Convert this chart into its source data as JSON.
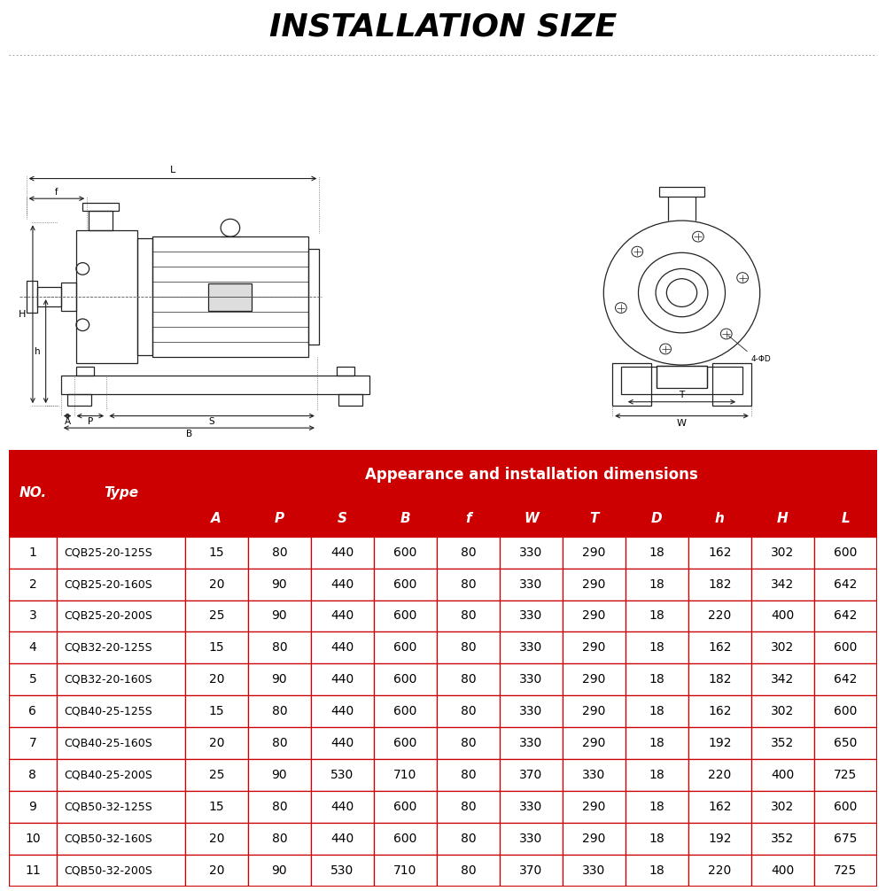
{
  "title": "INSTALLATION SIZE",
  "title_fontsize": 26,
  "title_fontstyle": "italic",
  "title_fontweight": "bold",
  "bg_color": "#ffffff",
  "table_header_bg": "#cc0000",
  "table_header_color": "#ffffff",
  "table_row_bg": "#ffffff",
  "table_border_color": "#cc0000",
  "col_headers": [
    "NO.",
    "Type",
    "A",
    "P",
    "S",
    "B",
    "f",
    "W",
    "T",
    "D",
    "h",
    "H",
    "L"
  ],
  "dim_header": "Appearance and installation dimensions",
  "rows": [
    [
      1,
      "CQB25-20-125S",
      15,
      80,
      440,
      600,
      80,
      330,
      290,
      18,
      162,
      302,
      600
    ],
    [
      2,
      "CQB25-20-160S",
      20,
      90,
      440,
      600,
      80,
      330,
      290,
      18,
      182,
      342,
      642
    ],
    [
      3,
      "CQB25-20-200S",
      25,
      90,
      440,
      600,
      80,
      330,
      290,
      18,
      220,
      400,
      642
    ],
    [
      4,
      "CQB32-20-125S",
      15,
      80,
      440,
      600,
      80,
      330,
      290,
      18,
      162,
      302,
      600
    ],
    [
      5,
      "CQB32-20-160S",
      20,
      90,
      440,
      600,
      80,
      330,
      290,
      18,
      182,
      342,
      642
    ],
    [
      6,
      "CQB40-25-125S",
      15,
      80,
      440,
      600,
      80,
      330,
      290,
      18,
      162,
      302,
      600
    ],
    [
      7,
      "CQB40-25-160S",
      20,
      80,
      440,
      600,
      80,
      330,
      290,
      18,
      192,
      352,
      650
    ],
    [
      8,
      "CQB40-25-200S",
      25,
      90,
      530,
      710,
      80,
      370,
      330,
      18,
      220,
      400,
      725
    ],
    [
      9,
      "CQB50-32-125S",
      15,
      80,
      440,
      600,
      80,
      330,
      290,
      18,
      162,
      302,
      600
    ],
    [
      10,
      "CQB50-32-160S",
      20,
      80,
      440,
      600,
      80,
      330,
      290,
      18,
      192,
      352,
      675
    ],
    [
      11,
      "CQB50-32-200S",
      20,
      90,
      530,
      710,
      80,
      370,
      330,
      18,
      220,
      400,
      725
    ]
  ]
}
